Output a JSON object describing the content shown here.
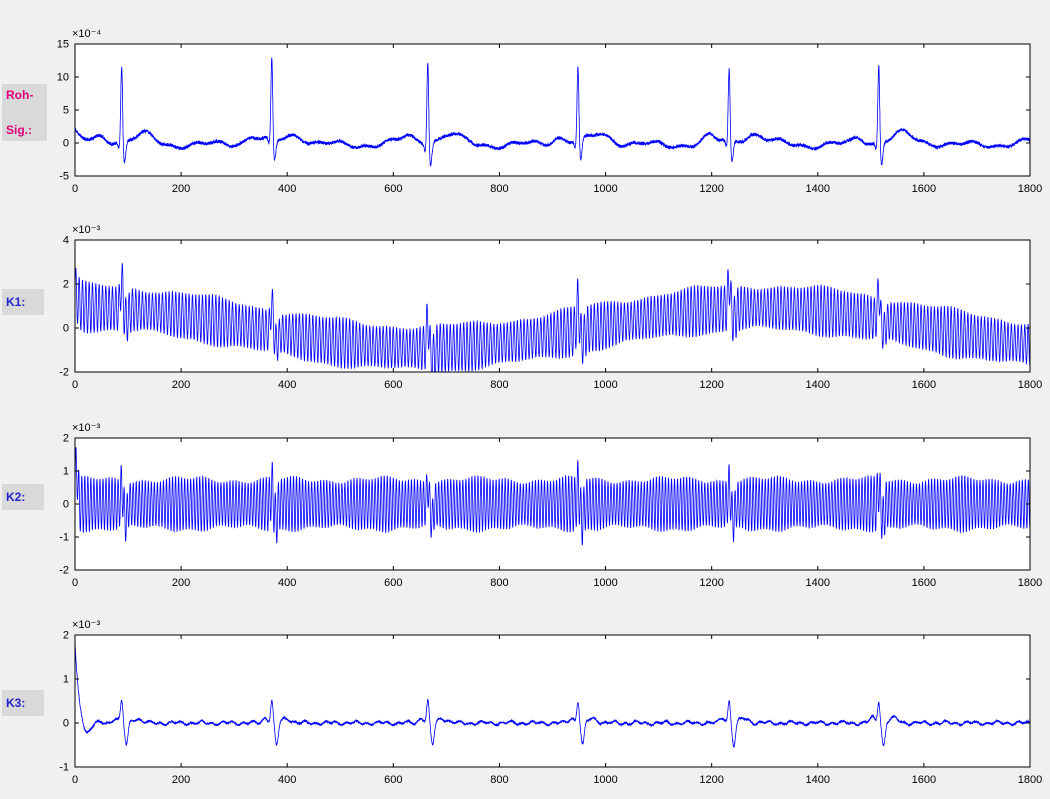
{
  "figure": {
    "background": "#f0f0f0",
    "plot_background": "#ffffff",
    "axis_color": "#000000",
    "line_color": "#0000ff",
    "label_background": "#d9d9d9"
  },
  "chart_data": [
    {
      "type": "line",
      "title": "",
      "label_line1": "Roh-",
      "label_line2": "Sig.:",
      "label_color": "#e2007a",
      "y_exponent_label": "×10⁻⁴",
      "x_range": [
        0,
        1800
      ],
      "y_range": [
        -5,
        15
      ],
      "x_ticks": [
        0,
        200,
        400,
        600,
        800,
        1000,
        1200,
        1400,
        1600,
        1800
      ],
      "y_ticks": [
        -5,
        0,
        5,
        10,
        15
      ],
      "grid": false,
      "series": [
        {
          "name": "raw-ecg-signal",
          "color": "#0000ff"
        }
      ],
      "signal": {
        "type": "ecg",
        "beats": [
          {
            "x": 88,
            "r_amp": 11.8
          },
          {
            "x": 371,
            "r_amp": 12.6
          },
          {
            "x": 665,
            "r_amp": 13.0
          },
          {
            "x": 948,
            "r_amp": 11.6
          },
          {
            "x": 1233,
            "r_amp": 11.2
          },
          {
            "x": 1515,
            "r_amp": 12.2
          }
        ],
        "q_amp": -1.0,
        "s_amp": -3.4,
        "p_amp": 0.8,
        "t_amp": 1.1,
        "baseline_noise_amp": 0.45,
        "initial_value": 1.6
      }
    },
    {
      "type": "line",
      "title": "",
      "label_line1": "K1:",
      "label_line2": "",
      "label_color": "#2222cc",
      "y_exponent_label": "×10⁻³",
      "x_range": [
        0,
        1800
      ],
      "y_range": [
        -2,
        4
      ],
      "x_ticks": [
        0,
        200,
        400,
        600,
        800,
        1000,
        1200,
        1400,
        1600,
        1800
      ],
      "y_ticks": [
        -2,
        0,
        2,
        4
      ],
      "grid": false,
      "series": [
        {
          "name": "component-k1",
          "color": "#0000ff"
        }
      ],
      "signal": {
        "type": "oscillation_with_wander",
        "carrier_period": 6.3,
        "carrier_amp": 1.0,
        "wander_amp": 0.92,
        "wander_period": 1270,
        "wander_phase": 20,
        "beat_spike_amp": 1.35,
        "beats": [
          88,
          371,
          665,
          948,
          1233,
          1515
        ],
        "initial_value": 0.9
      }
    },
    {
      "type": "line",
      "title": "",
      "label_line1": "K2:",
      "label_line2": "",
      "label_color": "#2222cc",
      "y_exponent_label": "×10⁻³",
      "x_range": [
        0,
        1800
      ],
      "y_range": [
        -2,
        2
      ],
      "x_ticks": [
        0,
        200,
        400,
        600,
        800,
        1000,
        1200,
        1400,
        1600,
        1800
      ],
      "y_ticks": [
        -2,
        -1,
        0,
        1,
        2
      ],
      "grid": false,
      "series": [
        {
          "name": "component-k2",
          "color": "#0000ff"
        }
      ],
      "signal": {
        "type": "oscillation_uniform",
        "carrier_period": 5.7,
        "carrier_amp": 0.74,
        "beat_spike_amp": 0.55,
        "beat_dip_amp": -0.5,
        "initial_spike_amp": 1.15,
        "beats": [
          88,
          371,
          665,
          948,
          1233,
          1515
        ]
      }
    },
    {
      "type": "line",
      "title": "",
      "label_line1": "K3:",
      "label_line2": "",
      "label_color": "#2222cc",
      "y_exponent_label": "×10⁻³",
      "x_range": [
        0,
        1800
      ],
      "y_range": [
        -1,
        2
      ],
      "x_ticks": [
        0,
        200,
        400,
        600,
        800,
        1000,
        1200,
        1400,
        1600,
        1800
      ],
      "y_ticks": [
        -1,
        0,
        1,
        2
      ],
      "grid": false,
      "series": [
        {
          "name": "component-k3",
          "color": "#0000ff"
        }
      ],
      "signal": {
        "type": "spike_train",
        "noise_amp": 0.05,
        "beat_spike_amp": 0.5,
        "beat_dip_amp": -0.52,
        "initial_value": 1.82,
        "beats": [
          88,
          371,
          665,
          948,
          1233,
          1515
        ]
      }
    }
  ]
}
